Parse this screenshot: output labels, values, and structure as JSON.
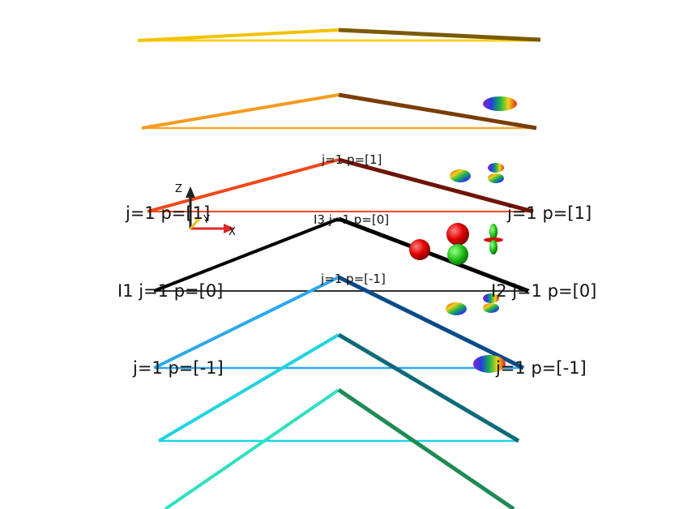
{
  "labels": {
    "top_center": "j=1 p=[1]",
    "top_left": "j=1 p=[1]",
    "top_right": "j=1 p=[1]",
    "mid_center": "I3 j=1 p=[0]",
    "mid_left": "I1 j=1 p=[0]",
    "mid_right": "I2 j=1 p=[0]",
    "bot_center": "j=1 p=[-1]",
    "bot_left": "j=1 p=[-1]",
    "bot_right": "j=1 p=[-1]"
  },
  "axes": {
    "x": "X",
    "y": "Y",
    "z": "Z"
  },
  "colors": {
    "level_1": "#f2c200",
    "level_2": "#f59b1f",
    "level_3": "#f0481c",
    "level_4": "#000000",
    "level_5": "#2aa8ee",
    "level_6": "#1ed4e0",
    "level_7": "#2fe0bf"
  }
}
